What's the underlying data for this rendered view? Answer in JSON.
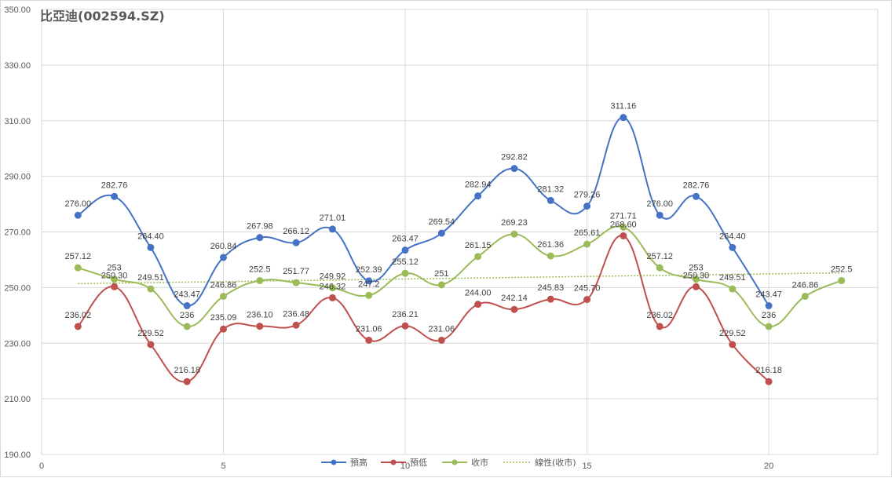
{
  "chart_data": {
    "type": "line",
    "title": "比亞迪(002594.SZ)",
    "xlabel": "",
    "ylabel": "",
    "xlim": [
      0,
      23
    ],
    "ylim": [
      190,
      350
    ],
    "x_ticks": [
      0,
      5,
      10,
      15,
      20
    ],
    "y_ticks": [
      190,
      210,
      230,
      250,
      270,
      290,
      310,
      330,
      350
    ],
    "y_tick_labels": [
      "190.00",
      "210.00",
      "230.00",
      "250.00",
      "270.00",
      "290.00",
      "310.00",
      "330.00",
      "350.00"
    ],
    "grid": true,
    "legend_position": "bottom",
    "series": [
      {
        "name": "預高",
        "color": "#4472c4",
        "x": [
          1,
          2,
          3,
          4,
          5,
          6,
          7,
          8,
          9,
          10,
          11,
          12,
          13,
          14,
          15,
          16,
          17,
          18,
          19,
          20
        ],
        "values": [
          276.0,
          282.76,
          264.4,
          243.47,
          260.84,
          267.98,
          266.12,
          271.01,
          252.39,
          263.47,
          269.54,
          282.94,
          292.82,
          281.32,
          279.26,
          311.16,
          276.0,
          282.76,
          264.4,
          243.47
        ],
        "labels": [
          "276.00",
          "282.76",
          "264.40",
          "243.47",
          "260.84",
          "267.98",
          "266.12",
          "271.01",
          "252.39",
          "263.47",
          "269.54",
          "282.94",
          "292.82",
          "281.32",
          "279.26",
          "311.16",
          "276.00",
          "282.76",
          "264.40",
          "243.47"
        ]
      },
      {
        "name": "預低",
        "color": "#c0504d",
        "x": [
          1,
          2,
          3,
          4,
          5,
          6,
          7,
          8,
          9,
          10,
          11,
          12,
          13,
          14,
          15,
          16,
          17,
          18,
          19,
          20
        ],
        "values": [
          236.02,
          250.3,
          229.52,
          216.18,
          235.09,
          236.1,
          236.48,
          246.32,
          231.06,
          236.21,
          231.06,
          244.0,
          242.14,
          245.83,
          245.7,
          268.6,
          236.02,
          250.3,
          229.52,
          216.18
        ],
        "labels": [
          "236.02",
          "250.30",
          "229.52",
          "216.18",
          "235.09",
          "236.10",
          "236.48",
          "246.32",
          "231.06",
          "236.21",
          "231.06",
          "244.00",
          "242.14",
          "245.83",
          "245.70",
          "268.60",
          "236.02",
          "250.30",
          "229.52",
          "216.18"
        ]
      },
      {
        "name": "收市",
        "color": "#9bbb59",
        "x": [
          1,
          2,
          3,
          4,
          5,
          6,
          7,
          8,
          9,
          10,
          11,
          12,
          13,
          14,
          15,
          16,
          17,
          18,
          19,
          20,
          21,
          22
        ],
        "values": [
          257.12,
          253,
          249.51,
          236,
          246.86,
          252.5,
          251.77,
          249.92,
          247.2,
          255.12,
          251,
          261.15,
          269.23,
          261.36,
          265.61,
          271.71,
          257.12,
          253,
          249.51,
          236,
          246.86,
          252.5
        ],
        "labels": [
          "257.12",
          "253",
          "249.51",
          "236",
          "246.86",
          "252.5",
          "251.77",
          "249.92",
          "247.2",
          "255.12",
          "251",
          "261.15",
          "269.23",
          "261.36",
          "265.61",
          "271.71",
          "257.12",
          "253",
          "249.51",
          "236",
          "246.86",
          "252.5"
        ]
      }
    ],
    "trendline": {
      "name": "線性(收市)",
      "color": "#9bbb59",
      "x": [
        1,
        22
      ],
      "values": [
        251.4,
        255.3
      ]
    }
  }
}
